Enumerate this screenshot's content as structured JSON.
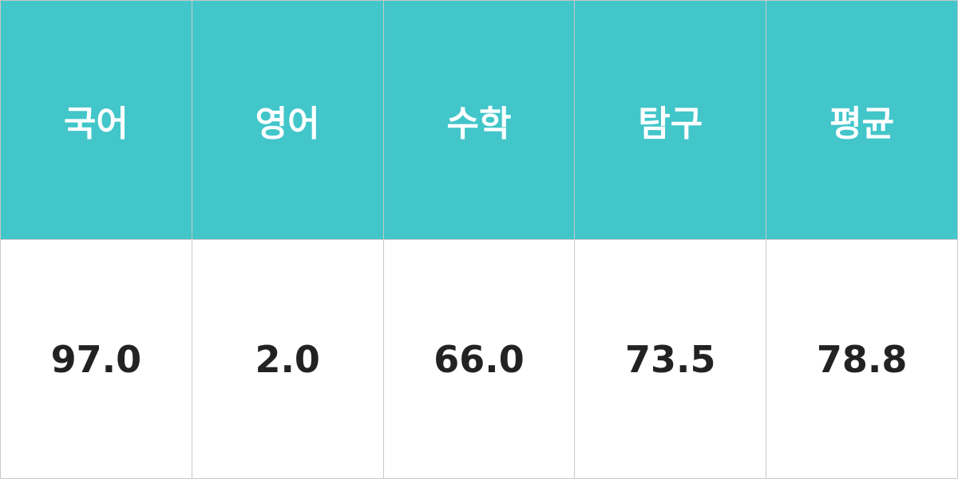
{
  "colors": {
    "header_bg": "#42c6ca",
    "header_text": "#ffffff",
    "value_text": "#222222"
  },
  "headers": [
    "국어",
    "영어",
    "수학",
    "탐구",
    "평균"
  ],
  "values": [
    "97.0",
    "2.0",
    "66.0",
    "73.5",
    "78.8"
  ]
}
